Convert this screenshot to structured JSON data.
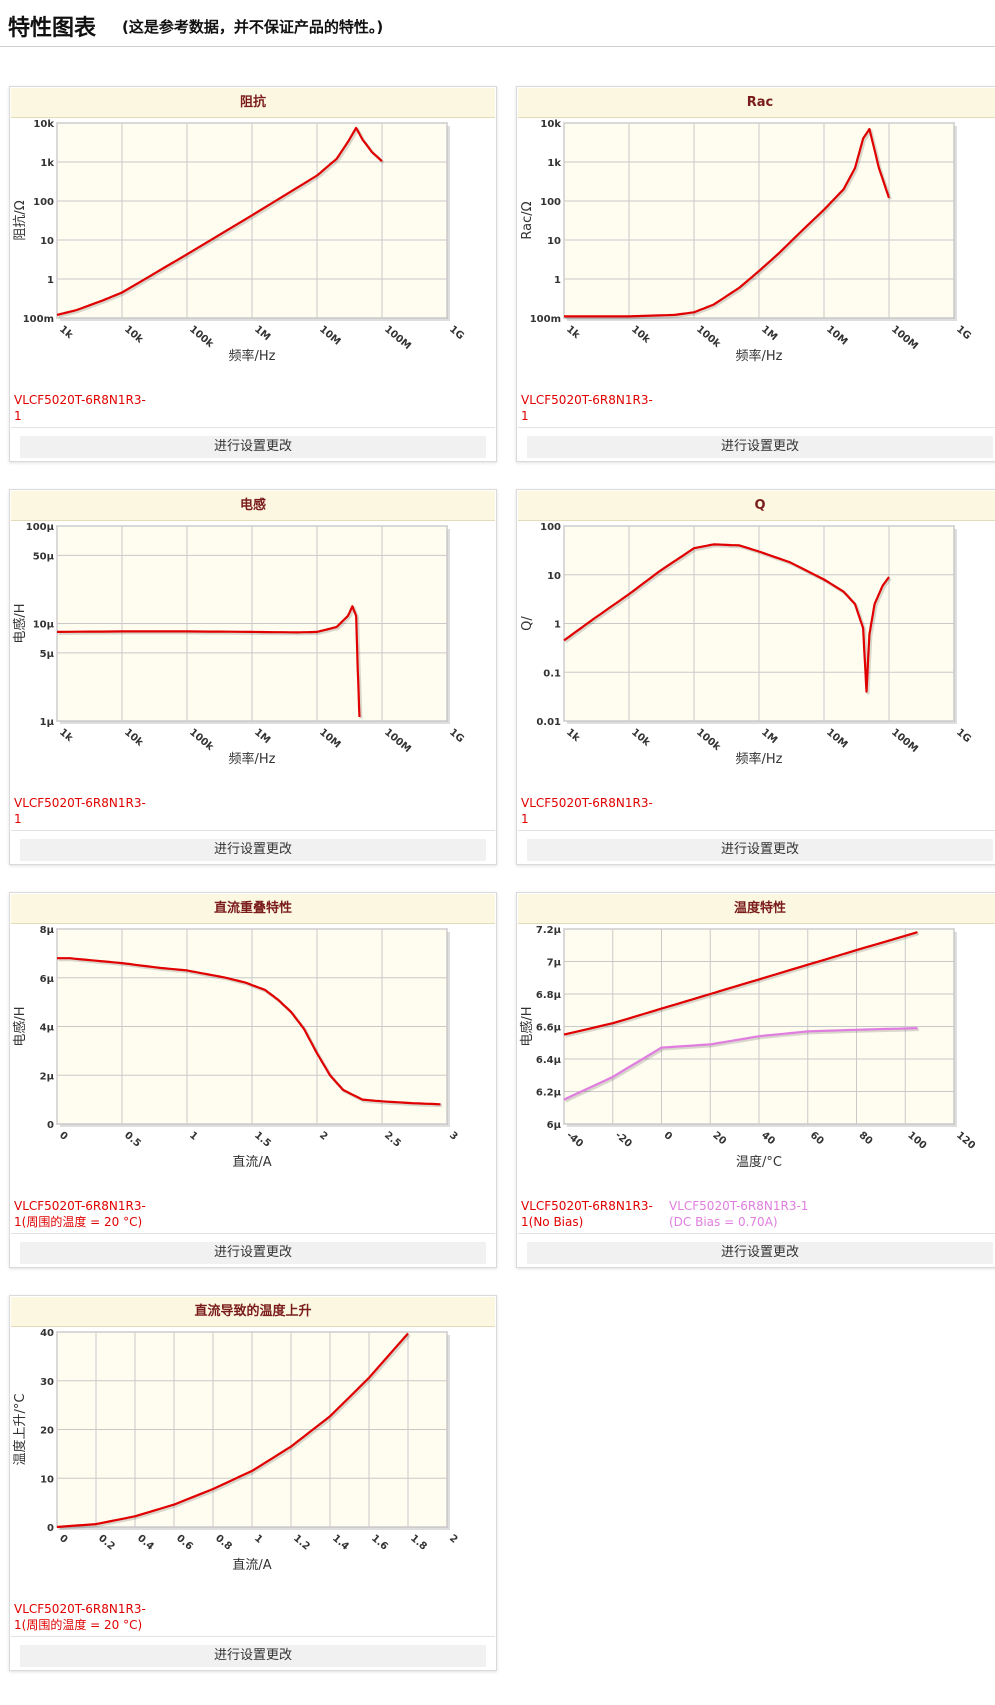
{
  "page": {
    "title": "特性图表",
    "subtitle": "(这是参考数据，并不保证产品的特性。)"
  },
  "settings_label": "进行设置更改",
  "colors": {
    "series_red": "#e00000",
    "series_pink": "#e07ee0",
    "plot_bg": "#fffcf0",
    "grid": "#c9c9c9",
    "title_bg": "#fcf7e0",
    "title_text": "#7a1c1c"
  },
  "panels": [
    {
      "title": "阻抗",
      "legend": [
        {
          "text": "VLCF5020T-6R8N1R3-1",
          "color": "#e00000"
        }
      ],
      "chart_data": {
        "type": "line",
        "title": "阻抗",
        "xlabel": "频率/Hz",
        "ylabel": "阻抗/Ω",
        "xscale": "log",
        "yscale": "log",
        "xlim": [
          1000,
          1000000000
        ],
        "ylim": [
          0.1,
          10000
        ],
        "xticks": [
          1000,
          10000,
          100000,
          1000000,
          10000000,
          100000000,
          1000000000
        ],
        "xticklabels": [
          "1k",
          "10k",
          "100k",
          "1M",
          "10M",
          "100M",
          "1G"
        ],
        "yticks": [
          0.1,
          1,
          10,
          100,
          1000,
          10000
        ],
        "yticklabels": [
          "100m",
          "1",
          "10",
          "100",
          "1k",
          "10k"
        ],
        "series": [
          {
            "name": "VLCF5020T-6R8N1R3-1",
            "color": "#e00000",
            "x": [
              1000,
              2000,
              5000,
              10000,
              100000,
              1000000,
              10000000,
              20000000,
              30000000,
              40000000,
              50000000,
              70000000,
              100000000
            ],
            "y": [
              0.12,
              0.16,
              0.28,
              0.45,
              4.3,
              43,
              450,
              1200,
              3300,
              7500,
              3800,
              1800,
              1050
            ]
          }
        ]
      }
    },
    {
      "title": "Rac",
      "legend": [
        {
          "text": "VLCF5020T-6R8N1R3-1",
          "color": "#e00000"
        }
      ],
      "chart_data": {
        "type": "line",
        "title": "Rac",
        "xlabel": "频率/Hz",
        "ylabel": "Rac/Ω",
        "xscale": "log",
        "yscale": "log",
        "xlim": [
          1000,
          1000000000
        ],
        "ylim": [
          0.1,
          10000
        ],
        "xticks": [
          1000,
          10000,
          100000,
          1000000,
          10000000,
          100000000,
          1000000000
        ],
        "xticklabels": [
          "1k",
          "10k",
          "100k",
          "1M",
          "10M",
          "100M",
          "1G"
        ],
        "yticks": [
          0.1,
          1,
          10,
          100,
          1000,
          10000
        ],
        "yticklabels": [
          "100m",
          "1",
          "10",
          "100",
          "1k",
          "10k"
        ],
        "series": [
          {
            "name": "VLCF5020T-6R8N1R3-1",
            "color": "#e00000",
            "x": [
              1000,
              10000,
              50000,
              100000,
              200000,
              500000,
              1000000,
              2000000,
              5000000,
              10000000,
              20000000,
              30000000,
              40000000,
              50000000,
              70000000,
              100000000
            ],
            "y": [
              0.11,
              0.11,
              0.12,
              0.14,
              0.22,
              0.6,
              1.6,
              4.5,
              20,
              60,
              200,
              700,
              4000,
              7000,
              700,
              120
            ]
          }
        ]
      }
    },
    {
      "title": "电感",
      "legend": [
        {
          "text": "VLCF5020T-6R8N1R3-1",
          "color": "#e00000"
        }
      ],
      "chart_data": {
        "type": "line",
        "title": "电感",
        "xlabel": "频率/Hz",
        "ylabel": "电感/H",
        "xscale": "log",
        "yscale": "log",
        "xlim": [
          1000,
          1000000000
        ],
        "ylim": [
          1e-06,
          0.0001
        ],
        "xticks": [
          1000,
          10000,
          100000,
          1000000,
          10000000,
          100000000,
          1000000000
        ],
        "xticklabels": [
          "1k",
          "10k",
          "100k",
          "1M",
          "10M",
          "100M",
          "1G"
        ],
        "yticks": [
          1e-06,
          5e-06,
          1e-05,
          5e-05,
          0.0001
        ],
        "yticklabels": [
          "1μ",
          "5μ",
          "10μ",
          "50μ",
          "100μ"
        ],
        "series": [
          {
            "name": "VLCF5020T-6R8N1R3-1",
            "color": "#e00000",
            "x": [
              1000,
              10000,
              100000,
              1000000,
              5000000,
              10000000,
              20000000,
              30000000,
              35000000,
              40000000,
              42000000,
              45000000
            ],
            "y": [
              8.2e-06,
              8.3e-06,
              8.3e-06,
              8.2e-06,
              8.1e-06,
              8.2e-06,
              9.2e-06,
              1.2e-05,
              1.5e-05,
              1.2e-05,
              4e-06,
              1.1e-06
            ]
          }
        ]
      }
    },
    {
      "title": "Q",
      "legend": [
        {
          "text": "VLCF5020T-6R8N1R3-1",
          "color": "#e00000"
        }
      ],
      "chart_data": {
        "type": "line",
        "title": "Q",
        "xlabel": "频率/Hz",
        "ylabel": "Q/",
        "xscale": "log",
        "yscale": "log",
        "xlim": [
          1000,
          1000000000
        ],
        "ylim": [
          0.01,
          100
        ],
        "xticks": [
          1000,
          10000,
          100000,
          1000000,
          10000000,
          100000000,
          1000000000
        ],
        "xticklabels": [
          "1k",
          "10k",
          "100k",
          "1M",
          "10M",
          "100M",
          "1G"
        ],
        "yticks": [
          0.01,
          0.1,
          1,
          10,
          100
        ],
        "yticklabels": [
          "0.01",
          "0.1",
          "1",
          "10",
          "100"
        ],
        "series": [
          {
            "name": "VLCF5020T-6R8N1R3-1",
            "color": "#e00000",
            "x": [
              1000,
              3000,
              10000,
              30000,
              100000,
              200000,
              500000,
              1000000,
              3000000,
              10000000,
              20000000,
              30000000,
              40000000,
              45000000,
              50000000,
              60000000,
              80000000,
              100000000
            ],
            "y": [
              0.45,
              1.3,
              4.0,
              12,
              35,
              42,
              40,
              30,
              18,
              8,
              4.5,
              2.5,
              0.8,
              0.04,
              0.6,
              2.5,
              6,
              9
            ]
          }
        ]
      }
    },
    {
      "title": "直流重叠特性",
      "legend": [
        {
          "text": "VLCF5020T-6R8N1R3-1(周围的温度 = 20 °C)",
          "color": "#e00000"
        }
      ],
      "chart_data": {
        "type": "line",
        "title": "直流重叠特性",
        "xlabel": "直流/A",
        "ylabel": "电感/H",
        "xscale": "linear",
        "yscale": "linear",
        "xlim": [
          0,
          3
        ],
        "ylim": [
          0,
          8e-06
        ],
        "xticks": [
          0,
          0.5,
          1,
          1.5,
          2,
          2.5,
          3
        ],
        "xticklabels": [
          "0",
          "0.5",
          "1",
          "1.5",
          "2",
          "2.5",
          "3"
        ],
        "yticks": [
          0,
          2e-06,
          4e-06,
          6e-06,
          8e-06
        ],
        "yticklabels": [
          "0",
          "2μ",
          "4μ",
          "6μ",
          "8μ"
        ],
        "series": [
          {
            "name": "VLCF5020T-6R8N1R3-1(周围的温度 = 20 °C)",
            "color": "#e00000",
            "x": [
              0,
              0.1,
              0.3,
              0.5,
              0.8,
              1.0,
              1.2,
              1.3,
              1.45,
              1.6,
              1.7,
              1.8,
              1.9,
              2.0,
              2.1,
              2.2,
              2.35,
              2.5,
              2.75,
              2.95
            ],
            "y": [
              6.8e-06,
              6.8e-06,
              6.7e-06,
              6.6e-06,
              6.4e-06,
              6.3e-06,
              6.1e-06,
              6e-06,
              5.8e-06,
              5.5e-06,
              5.1e-06,
              4.6e-06,
              3.9e-06,
              2.9e-06,
              2e-06,
              1.4e-06,
              1e-06,
              9.3e-07,
              8.5e-07,
              8.1e-07
            ]
          }
        ]
      }
    },
    {
      "title": "温度特性",
      "legend": [
        {
          "text": "VLCF5020T-6R8N1R3-1(No Bias)",
          "color": "#e00000"
        },
        {
          "text": "VLCF5020T-6R8N1R3-1(DC Bias = 0.70A)",
          "color": "#e07ee0"
        }
      ],
      "chart_data": {
        "type": "line",
        "title": "温度特性",
        "xlabel": "温度/°C",
        "ylabel": "电感/H",
        "xscale": "linear",
        "yscale": "linear",
        "xlim": [
          -40,
          120
        ],
        "ylim": [
          6e-06,
          7.2e-06
        ],
        "xticks": [
          -40,
          -20,
          0,
          20,
          40,
          60,
          80,
          100,
          120
        ],
        "xticklabels": [
          "-40",
          "-20",
          "0",
          "20",
          "40",
          "60",
          "80",
          "100",
          "120"
        ],
        "yticks": [
          6e-06,
          6.2e-06,
          6.4e-06,
          6.6e-06,
          6.8e-06,
          7e-06,
          7.2e-06
        ],
        "yticklabels": [
          "6μ",
          "6.2μ",
          "6.4μ",
          "6.6μ",
          "6.8μ",
          "7μ",
          "7.2μ"
        ],
        "series": [
          {
            "name": "VLCF5020T-6R8N1R3-1(No Bias)",
            "color": "#e00000",
            "x": [
              -40,
              -20,
              0,
              20,
              40,
              60,
              80,
              105
            ],
            "y": [
              6.55e-06,
              6.62e-06,
              6.71e-06,
              6.8e-06,
              6.89e-06,
              6.98e-06,
              7.07e-06,
              7.18e-06
            ]
          },
          {
            "name": "VLCF5020T-6R8N1R3-1(DC Bias = 0.70A)",
            "color": "#e07ee0",
            "x": [
              -40,
              -20,
              0,
              20,
              40,
              60,
              80,
              105
            ],
            "y": [
              6.15e-06,
              6.29e-06,
              6.47e-06,
              6.49e-06,
              6.54e-06,
              6.57e-06,
              6.58e-06,
              6.59e-06
            ]
          }
        ]
      }
    },
    {
      "title": "直流导致的温度上升",
      "legend": [
        {
          "text": "VLCF5020T-6R8N1R3-1(周围的温度 = 20 °C)",
          "color": "#e00000"
        }
      ],
      "chart_data": {
        "type": "line",
        "title": "直流导致的温度上升",
        "xlabel": "直流/A",
        "ylabel": "温度上升/°C",
        "xscale": "linear",
        "yscale": "linear",
        "xlim": [
          0,
          2
        ],
        "ylim": [
          0,
          40
        ],
        "xticks": [
          0,
          0.2,
          0.4,
          0.6,
          0.8,
          1,
          1.2,
          1.4,
          1.6,
          1.8,
          2
        ],
        "xticklabels": [
          "0",
          "0.2",
          "0.4",
          "0.6",
          "0.8",
          "1",
          "1.2",
          "1.4",
          "1.6",
          "1.8",
          "2"
        ],
        "yticks": [
          0,
          10,
          20,
          30,
          40
        ],
        "yticklabels": [
          "0",
          "10",
          "20",
          "30",
          "40"
        ],
        "series": [
          {
            "name": "VLCF5020T-6R8N1R3-1(周围的温度 = 20 °C)",
            "color": "#e00000",
            "x": [
              0,
              0.2,
              0.4,
              0.6,
              0.8,
              1.0,
              1.2,
              1.4,
              1.6,
              1.8
            ],
            "y": [
              0,
              0.6,
              2.2,
              4.6,
              7.8,
              11.5,
              16.5,
              22.7,
              30.6,
              39.7
            ]
          }
        ]
      }
    }
  ]
}
